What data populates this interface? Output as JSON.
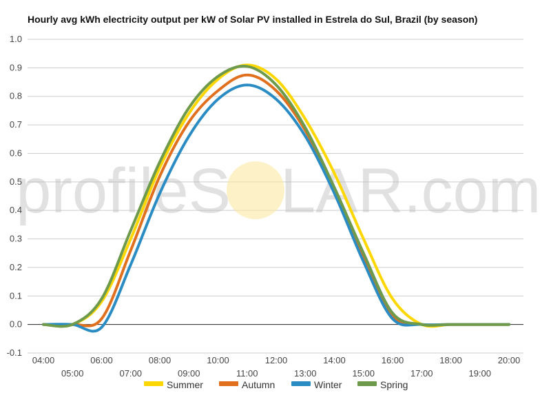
{
  "watermark": {
    "left": "profileS",
    "right": "LAR.com"
  },
  "colors": {
    "summer": "#FFD700",
    "autumn": "#E0701E",
    "winter": "#2B8CC4",
    "spring": "#6E9A4C",
    "grid": "#cccccc",
    "zero_line": "#222222",
    "watermark_sun": "#FBE7A4"
  },
  "chart_data": {
    "type": "line",
    "title": "Hourly avg kWh electricity output per kW of Solar PV installed in Estrela do Sul, Brazil (by season)",
    "xlabel": "",
    "ylabel": "",
    "x": [
      "04:00",
      "05:00",
      "06:00",
      "07:00",
      "08:00",
      "09:00",
      "10:00",
      "11:00",
      "12:00",
      "13:00",
      "14:00",
      "15:00",
      "16:00",
      "17:00",
      "18:00",
      "19:00",
      "20:00"
    ],
    "ylim": [
      -0.1,
      1.0
    ],
    "yticks": [
      "-0.1",
      "0.0",
      "0.1",
      "0.2",
      "0.3",
      "0.4",
      "0.5",
      "0.6",
      "0.7",
      "0.8",
      "0.9",
      "1.0"
    ],
    "grid": true,
    "legend_position": "bottom",
    "series": [
      {
        "name": "Summer",
        "color": "#FFD700",
        "values": [
          0.0,
          0.0,
          0.08,
          0.3,
          0.55,
          0.74,
          0.86,
          0.91,
          0.86,
          0.72,
          0.53,
          0.3,
          0.09,
          0.0,
          0.0,
          0.0,
          0.0
        ]
      },
      {
        "name": "Autumn",
        "color": "#E0701E",
        "values": [
          0.0,
          0.0,
          0.02,
          0.26,
          0.52,
          0.71,
          0.82,
          0.875,
          0.82,
          0.68,
          0.47,
          0.23,
          0.03,
          0.0,
          0.0,
          0.0,
          0.0
        ]
      },
      {
        "name": "Winter",
        "color": "#2B8CC4",
        "values": [
          0.0,
          0.0,
          -0.01,
          0.21,
          0.46,
          0.66,
          0.79,
          0.84,
          0.79,
          0.66,
          0.46,
          0.22,
          0.02,
          0.0,
          0.0,
          0.0,
          0.0
        ]
      },
      {
        "name": "Spring",
        "color": "#6E9A4C",
        "values": [
          0.0,
          0.0,
          0.09,
          0.33,
          0.57,
          0.76,
          0.87,
          0.905,
          0.84,
          0.69,
          0.48,
          0.25,
          0.04,
          0.0,
          0.0,
          0.0,
          0.0
        ]
      }
    ]
  }
}
